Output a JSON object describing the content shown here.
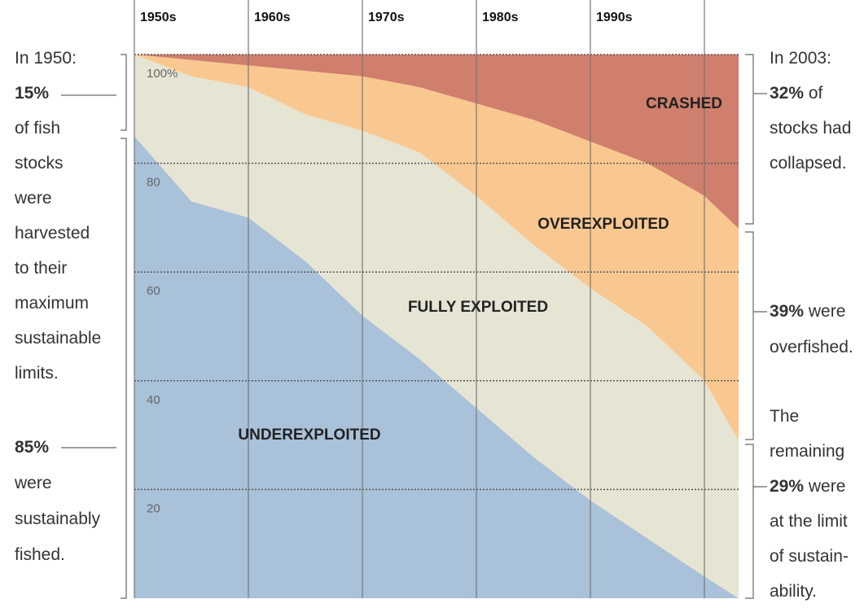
{
  "chart_data": {
    "type": "stacked_area",
    "x": [
      1950,
      1955,
      1960,
      1965,
      1970,
      1975,
      1980,
      1985,
      1990,
      1995,
      2000,
      2003
    ],
    "xlim": [
      1950,
      2003
    ],
    "xticks": [
      {
        "value": 1950,
        "label": "1950s"
      },
      {
        "value": 1960,
        "label": "1960s"
      },
      {
        "value": 1970,
        "label": "1970s"
      },
      {
        "value": 1980,
        "label": "1980s"
      },
      {
        "value": 1990,
        "label": "1990s"
      },
      {
        "value": 2000,
        "label": null
      }
    ],
    "ylim": [
      0,
      100
    ],
    "yticks": [
      20,
      40,
      60,
      80,
      {
        "value": 100,
        "label": "100%"
      }
    ],
    "grid": true,
    "series": [
      {
        "name": "UNDEREXPLOITED",
        "color": "#a9c1d9",
        "values": [
          85,
          73,
          70,
          62,
          52,
          44,
          35,
          26,
          18,
          11,
          4,
          0
        ]
      },
      {
        "name": "FULLY EXPLOITED",
        "color": "#e6e4d3",
        "values": [
          15,
          23,
          24,
          27,
          34,
          38,
          39,
          39,
          39,
          39,
          36,
          29
        ]
      },
      {
        "name": "OVEREXPLOITED",
        "color": "#f9c890",
        "values": [
          0,
          3,
          4,
          8,
          10,
          12,
          17,
          23,
          27,
          30,
          34,
          39
        ]
      },
      {
        "name": "CRASHED",
        "color": "#cf7f6c",
        "values": [
          0,
          1,
          2,
          3,
          4,
          6,
          9,
          12,
          16,
          20,
          26,
          32
        ]
      }
    ],
    "annotations": [
      {
        "lines": [
          [
            {
              "text": "In 1950:"
            }
          ],
          [
            {
              "text": "15%",
              "bold": true
            }
          ],
          [
            {
              "text": "of fish"
            }
          ],
          [
            {
              "text": "stocks"
            }
          ],
          [
            {
              "text": "were"
            }
          ],
          [
            {
              "text": "harvested"
            }
          ],
          [
            {
              "text": "to their"
            }
          ],
          [
            {
              "text": "maximum"
            }
          ],
          [
            {
              "text": "sustainable"
            }
          ],
          [
            {
              "text": "limits."
            }
          ]
        ]
      },
      {
        "lines": [
          [
            {
              "text": "85%",
              "bold": true
            }
          ],
          [
            {
              "text": "were"
            }
          ],
          [
            {
              "text": "sustainably"
            }
          ],
          [
            {
              "text": "fished."
            }
          ]
        ]
      },
      {
        "lines": [
          [
            {
              "text": "In 2003:"
            }
          ],
          [
            {
              "text": "32%",
              "bold": true
            },
            {
              "text": " of"
            }
          ],
          [
            {
              "text": "stocks had"
            }
          ],
          [
            {
              "text": "collapsed."
            }
          ]
        ]
      },
      {
        "lines": [
          [
            {
              "text": "39%",
              "bold": true
            },
            {
              "text": " were"
            }
          ],
          [
            {
              "text": "overfished."
            }
          ]
        ]
      },
      {
        "lines": [
          [
            {
              "text": "The"
            }
          ],
          [
            {
              "text": "remaining"
            }
          ],
          [
            {
              "text": "29%",
              "bold": true
            },
            {
              "text": " were"
            }
          ],
          [
            {
              "text": "at the limit"
            }
          ],
          [
            {
              "text": "of sustain-"
            }
          ],
          [
            {
              "text": "ability."
            }
          ]
        ]
      }
    ]
  }
}
